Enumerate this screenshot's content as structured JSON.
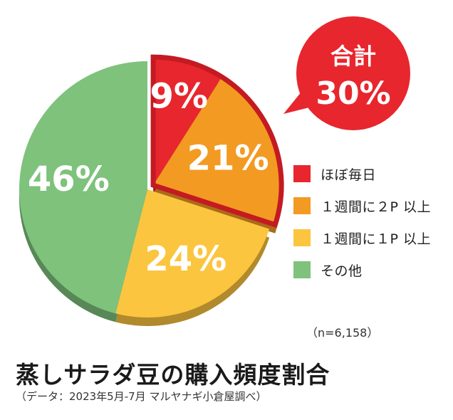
{
  "chart_data": {
    "type": "pie",
    "start_angle_deg": 0,
    "direction": "clockwise",
    "slices": [
      {
        "name": "ほぼ毎日",
        "value": 9,
        "label": "9%",
        "color": "#e8262e"
      },
      {
        "name": "１週間に２P 以上",
        "value": 21,
        "label": "21%",
        "color": "#f39a22"
      },
      {
        "name": "１週間に１P 以上",
        "value": 24,
        "label": "24%",
        "color": "#fbc53f"
      },
      {
        "name": "その他",
        "value": 46,
        "label": "46%",
        "color": "#7ec27c"
      }
    ],
    "highlight": {
      "slices": [
        0,
        1
      ],
      "outline_color": "#c41a22"
    },
    "callout": {
      "line1": "合計",
      "line2": "30%",
      "color": "#e8262e"
    },
    "legend_position": "right",
    "sample_size": "（n=6,158）",
    "title": "蒸しサラダ豆の購入頻度割合",
    "source": "（データ：2023年5月-7月 マルヤナギ小倉屋調べ）"
  }
}
